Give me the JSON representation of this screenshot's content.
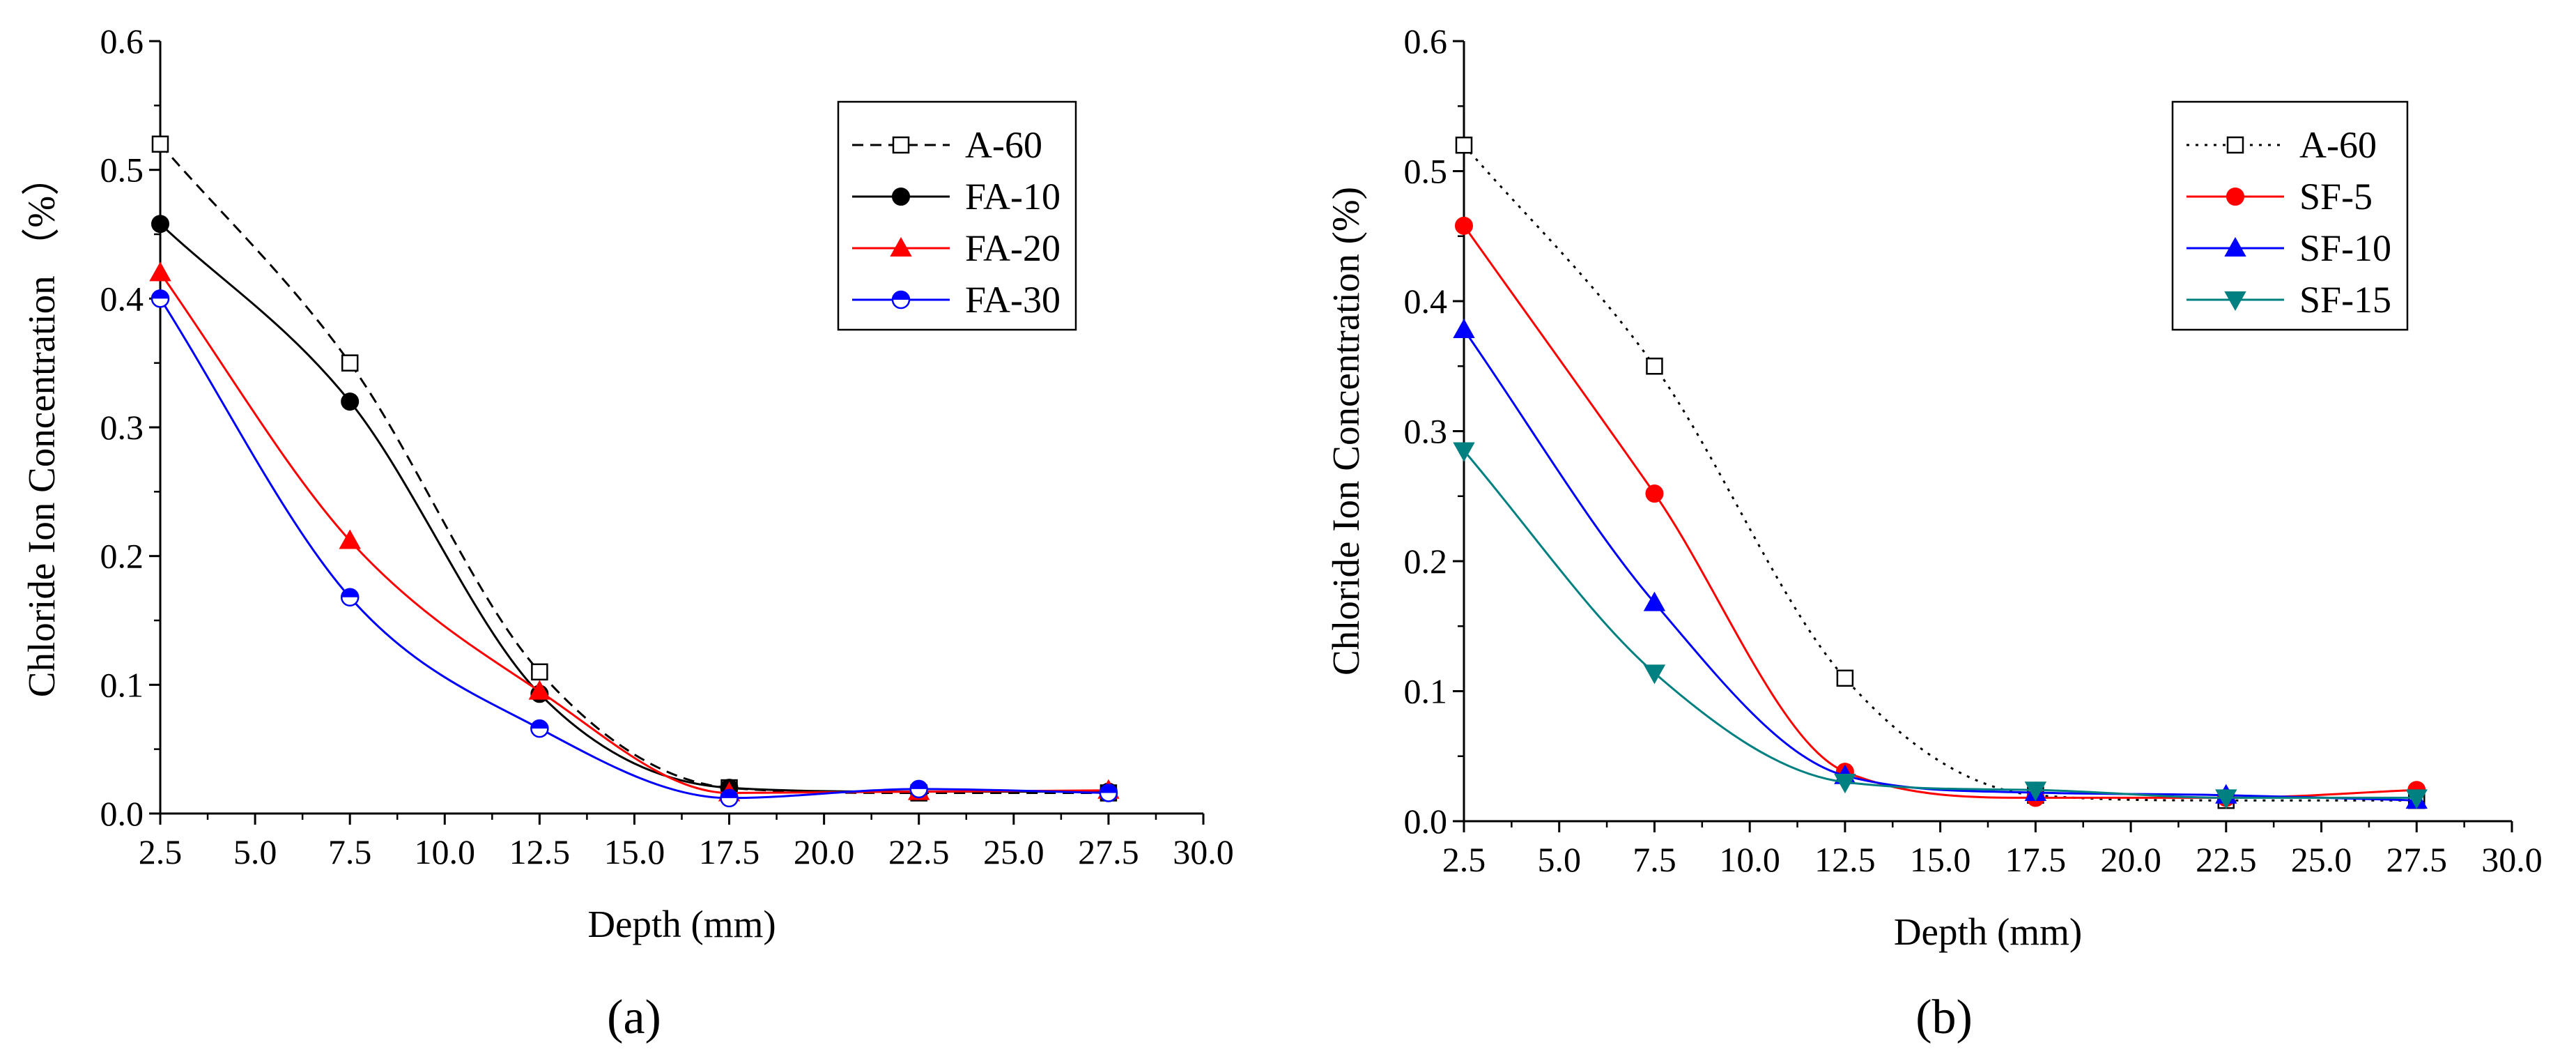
{
  "chart_data": [
    {
      "type": "line",
      "panel_label": "(a)",
      "xlabel": "Depth (mm)",
      "ylabel": "Chloride Ion Concentration （%）",
      "xlim": [
        2.5,
        30.0
      ],
      "ylim": [
        0.0,
        0.6
      ],
      "x_ticks": [
        "2.5",
        "5.0",
        "7.5",
        "10.0",
        "12.5",
        "15.0",
        "17.5",
        "20.0",
        "22.5",
        "25.0",
        "27.5",
        "30.0"
      ],
      "y_ticks": [
        "0.0",
        "0.1",
        "0.2",
        "0.3",
        "0.4",
        "0.5",
        "0.6"
      ],
      "legend_position": "top-right",
      "x": [
        2.5,
        7.5,
        12.5,
        17.5,
        22.5,
        27.5
      ],
      "series": [
        {
          "name": "A-60",
          "values": [
            0.52,
            0.35,
            0.11,
            0.02,
            0.016,
            0.016
          ],
          "color": "#000000",
          "line_style": "dashed",
          "marker": "open-square"
        },
        {
          "name": "FA-10",
          "values": [
            0.458,
            0.32,
            0.093,
            0.02,
            0.017,
            0.017
          ],
          "color": "#000000",
          "line_style": "solid",
          "marker": "filled-circle"
        },
        {
          "name": "FA-20",
          "values": [
            0.42,
            0.212,
            0.095,
            0.016,
            0.017,
            0.018
          ],
          "color": "#ff0000",
          "line_style": "solid",
          "marker": "filled-triangle-up"
        },
        {
          "name": "FA-30",
          "values": [
            0.4,
            0.168,
            0.066,
            0.012,
            0.019,
            0.016
          ],
          "color": "#0000ff",
          "line_style": "solid",
          "marker": "half-filled-circle"
        }
      ]
    },
    {
      "type": "line",
      "panel_label": "(b)",
      "xlabel": "Depth (mm)",
      "ylabel": "Chloride Ion Concentration (%)",
      "xlim": [
        2.5,
        30.0
      ],
      "ylim": [
        0.0,
        0.6
      ],
      "x_ticks": [
        "2.5",
        "5.0",
        "7.5",
        "10.0",
        "12.5",
        "15.0",
        "17.5",
        "20.0",
        "22.5",
        "25.0",
        "27.5",
        "30.0"
      ],
      "y_ticks": [
        "0.0",
        "0.1",
        "0.2",
        "0.3",
        "0.4",
        "0.5",
        "0.6"
      ],
      "legend_position": "top-right",
      "x": [
        2.5,
        7.5,
        12.5,
        17.5,
        22.5,
        27.5
      ],
      "series": [
        {
          "name": "A-60",
          "values": [
            0.52,
            0.35,
            0.11,
            0.02,
            0.016,
            0.016
          ],
          "color": "#000000",
          "line_style": "dotted",
          "marker": "open-square"
        },
        {
          "name": "SF-5",
          "values": [
            0.458,
            0.252,
            0.038,
            0.018,
            0.018,
            0.024
          ],
          "color": "#ff0000",
          "line_style": "solid",
          "marker": "filled-circle"
        },
        {
          "name": "SF-10",
          "values": [
            0.378,
            0.168,
            0.035,
            0.022,
            0.02,
            0.016
          ],
          "color": "#0000ff",
          "line_style": "solid",
          "marker": "filled-triangle-up"
        },
        {
          "name": "SF-15",
          "values": [
            0.285,
            0.114,
            0.03,
            0.024,
            0.018,
            0.018
          ],
          "color": "#008080",
          "line_style": "solid",
          "marker": "filled-triangle-down"
        }
      ]
    }
  ]
}
